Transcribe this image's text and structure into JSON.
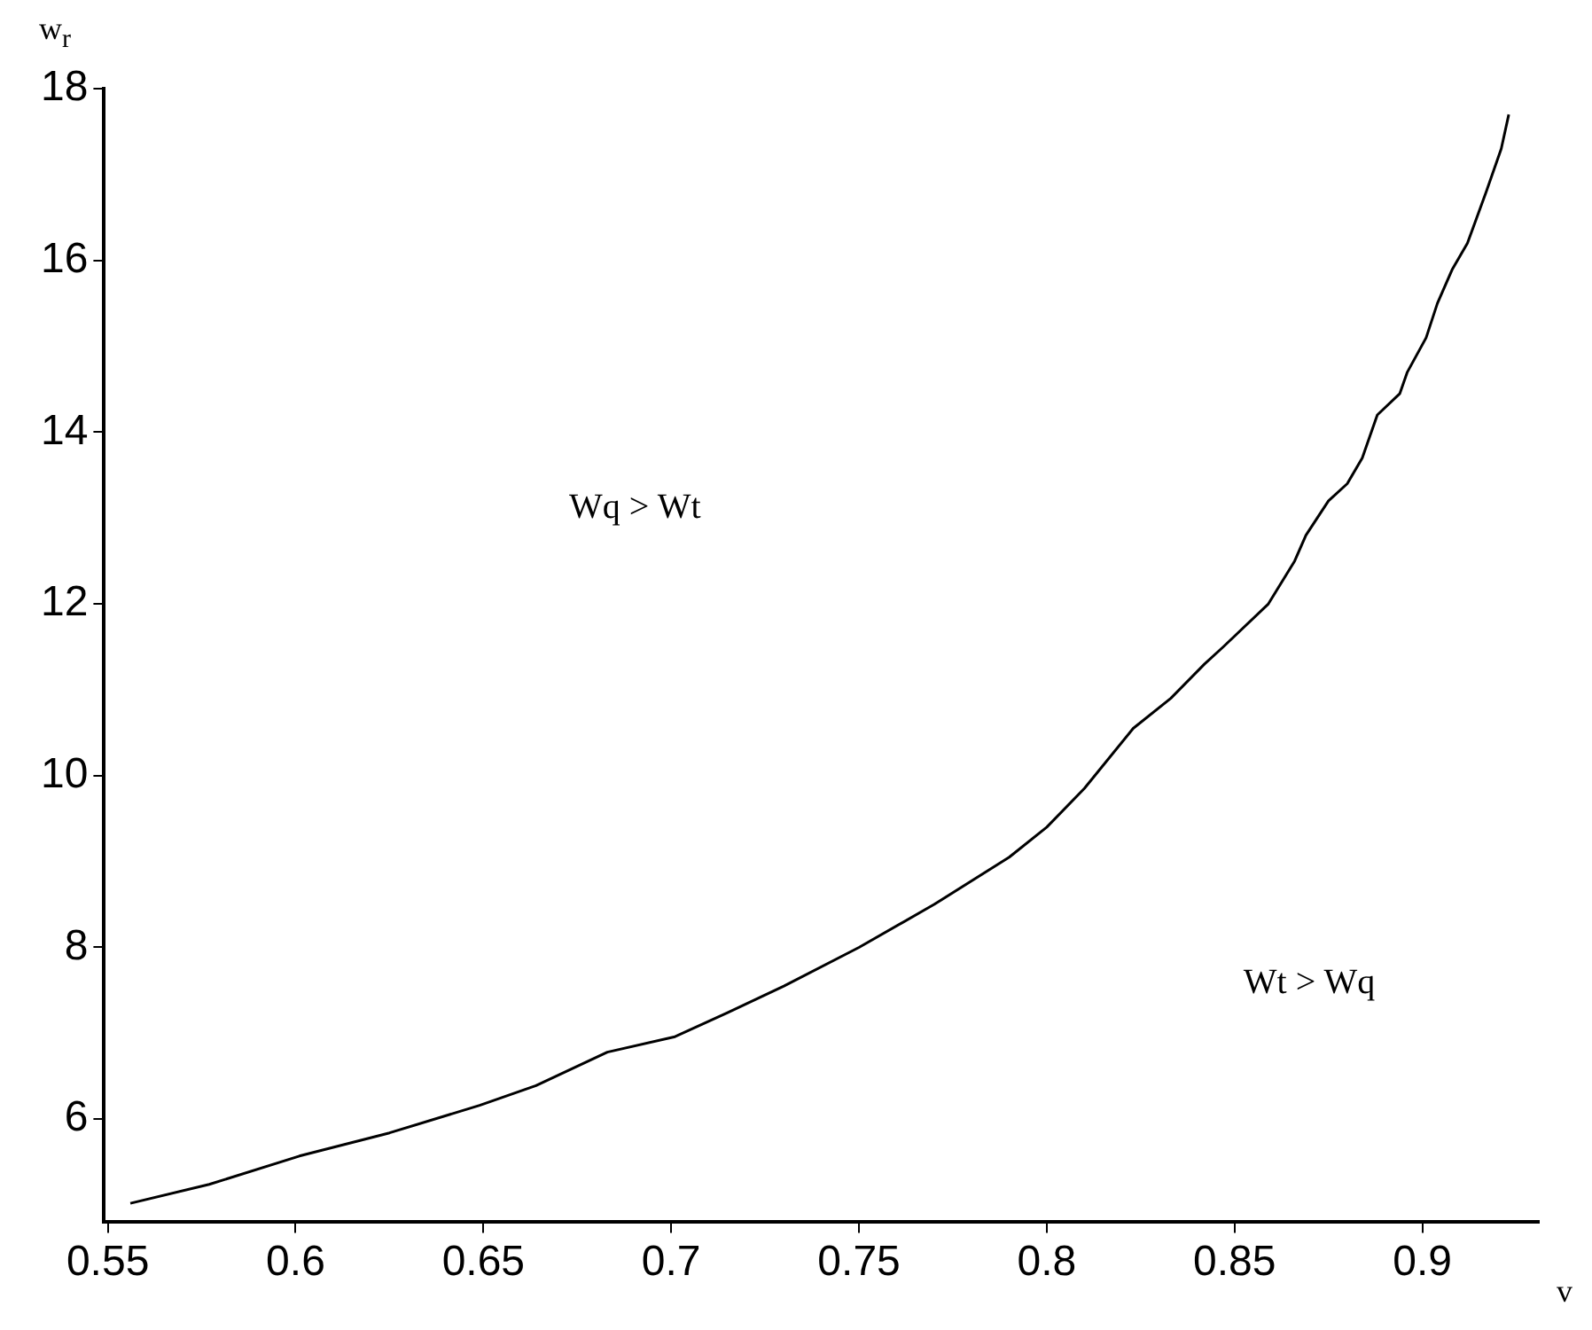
{
  "chart_data": {
    "type": "line",
    "xlabel": "v",
    "ylabel": "w$_{r}$",
    "series": [
      {
        "color": "#000000",
        "x": [
          0.556,
          0.577,
          0.601,
          0.625,
          0.649,
          0.664,
          0.683,
          0.701,
          0.715,
          0.73,
          0.75,
          0.77,
          0.79,
          0.8,
          0.81,
          0.823,
          0.833,
          0.842,
          0.847,
          0.859,
          0.866,
          0.869,
          0.875,
          0.88,
          0.884,
          0.888,
          0.894,
          0.896,
          0.901,
          0.904,
          0.908,
          0.912,
          0.917,
          0.921,
          0.923
        ],
        "values": [
          5.02,
          5.24,
          5.57,
          5.84,
          6.16,
          6.39,
          6.78,
          6.96,
          7.24,
          7.55,
          8.0,
          8.5,
          9.05,
          9.4,
          9.85,
          10.55,
          10.9,
          11.3,
          11.5,
          12.0,
          12.5,
          12.8,
          13.2,
          13.4,
          13.7,
          14.2,
          14.45,
          14.7,
          15.1,
          15.5,
          15.9,
          16.2,
          16.8,
          17.3,
          17.7
        ]
      }
    ],
    "xlim": [
      0.549,
      0.931
    ],
    "xticks": [
      0.55,
      0.6,
      0.65,
      0.7,
      0.75,
      0.8,
      0.85,
      0.9
    ],
    "ylim": [
      4.8,
      18
    ],
    "yticks": [
      6,
      8,
      10,
      12,
      14,
      16,
      18
    ],
    "annotations": [
      "Wq > Wt",
      "Wt > Wq"
    ],
    "grid": false,
    "legend": false,
    "marker": "none",
    "line_style": "solid"
  }
}
